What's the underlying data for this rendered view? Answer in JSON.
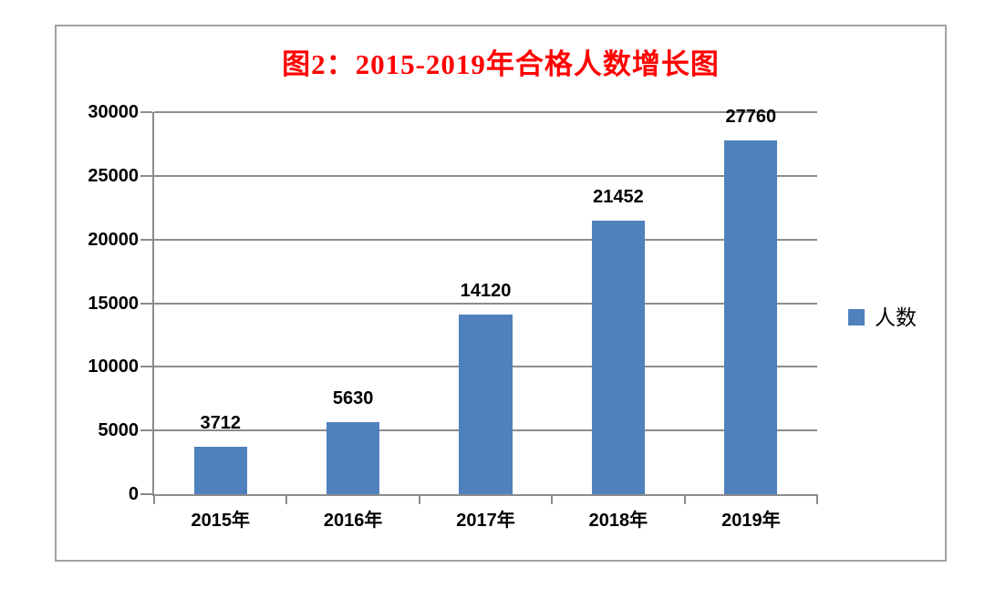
{
  "chart_data": {
    "type": "bar",
    "title": "图2：2015-2019年合格人数增长图",
    "categories": [
      "2015年",
      "2016年",
      "2017年",
      "2018年",
      "2019年"
    ],
    "series": [
      {
        "name": "人数",
        "values": [
          3712,
          5630,
          14120,
          21452,
          27760
        ]
      }
    ],
    "data_labels": [
      "3712",
      "5630",
      "14120",
      "21452",
      "27760"
    ],
    "xlabel": "",
    "ylabel": "",
    "ylim": [
      0,
      30000
    ],
    "ytick_step": 5000,
    "ytick_labels": [
      "0",
      "5000",
      "10000",
      "15000",
      "20000",
      "25000",
      "30000"
    ],
    "grid": true,
    "legend": {
      "position": "right",
      "label": "人数"
    },
    "colors": {
      "bar": "#4f81bd",
      "title": "#ff0000",
      "gridline": "#8c8c8c",
      "axis": "#8c8c8c",
      "frame_border": "#a2a2a2",
      "text": "#000000",
      "background": "#ffffff"
    }
  }
}
